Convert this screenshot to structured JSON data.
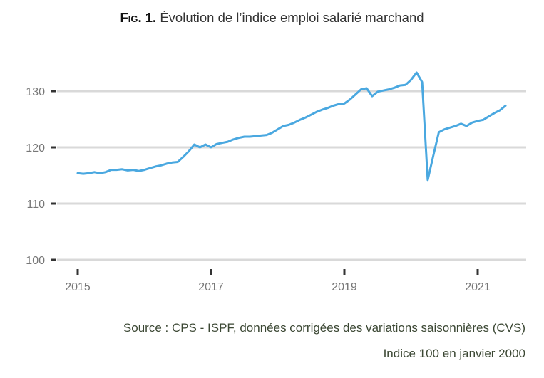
{
  "chart_data": {
    "type": "line",
    "title_prefix": "Fig. 1.",
    "title": "Évolution de l’indice emploi salarié marchand",
    "xlabel": "",
    "ylabel": "",
    "ylim": [
      100,
      133
    ],
    "yticks": [
      100,
      110,
      120,
      130
    ],
    "xticks": [
      2015,
      2017,
      2019,
      2021
    ],
    "grid": "horizontal",
    "line_color": "#4aa8e0",
    "x_start": "2015-01",
    "x_frequency": "monthly",
    "values": [
      115.4,
      115.3,
      115.4,
      115.6,
      115.4,
      115.6,
      116.0,
      116.0,
      116.1,
      115.9,
      116.0,
      115.8,
      116.0,
      116.3,
      116.6,
      116.8,
      117.1,
      117.3,
      117.4,
      118.3,
      119.3,
      120.5,
      120.0,
      120.5,
      120.0,
      120.6,
      120.8,
      121.0,
      121.4,
      121.7,
      121.9,
      121.9,
      122.0,
      122.1,
      122.2,
      122.6,
      123.2,
      123.8,
      124.0,
      124.4,
      124.9,
      125.3,
      125.8,
      126.3,
      126.7,
      127.0,
      127.4,
      127.7,
      127.8,
      128.5,
      129.4,
      130.3,
      130.5,
      129.1,
      129.9,
      130.1,
      130.3,
      130.6,
      131.0,
      131.1,
      132.0,
      133.3,
      131.6,
      114.2,
      118.5,
      122.7,
      123.2,
      123.5,
      123.8,
      124.2,
      123.8,
      124.4,
      124.7,
      124.9,
      125.5,
      126.1,
      126.6,
      127.4
    ]
  },
  "notes": {
    "source": "Source : CPS - ISPF, données corrigées des variations saisonnières (CVS)",
    "base": "Indice 100 en janvier 2000"
  }
}
